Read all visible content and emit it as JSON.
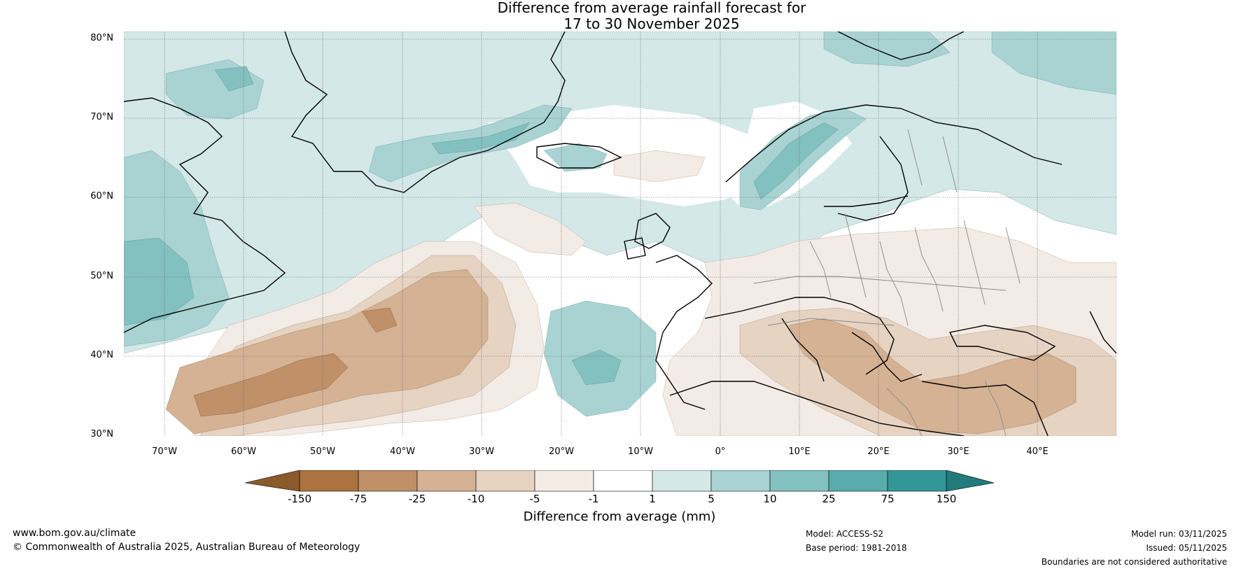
{
  "title": {
    "line1": "Difference from average rainfall forecast for",
    "line2": "17 to 30 November 2025"
  },
  "map": {
    "lat_labels": [
      "80°N",
      "70°N",
      "60°N",
      "50°N",
      "40°N",
      "30°N"
    ],
    "lon_labels": [
      "70°W",
      "60°W",
      "50°W",
      "40°W",
      "30°W",
      "20°W",
      "10°W",
      "0°",
      "10°E",
      "20°E",
      "30°E",
      "40°E"
    ]
  },
  "colorbar": {
    "title": "Difference from average (mm)",
    "ticks": [
      "-150",
      "-75",
      "-25",
      "-10",
      "-5",
      "-1",
      "1",
      "5",
      "10",
      "25",
      "75",
      "150"
    ],
    "colors": {
      "lt_-150": "#8b5a2b",
      "-150_-75": "#ab733f",
      "-75_-25": "#c09068",
      "-25_-10": "#d5b294",
      "-10_-5": "#e6d3c2",
      "-5_-1": "#f3ebe5",
      "-1_1": "#ffffff",
      "1_5": "#d4e8e8",
      "5_10": "#a9d3d3",
      "10_25": "#83c0c0",
      "25_75": "#5aabab",
      "75_150": "#349797",
      "gt_150": "#227a7a"
    }
  },
  "footer": {
    "url": "www.bom.gov.au/climate",
    "copyright": "© Commonwealth of Australia 2025, Australian Bureau of Meteorology",
    "model": "Model: ACCESS-S2",
    "base_period": "Base period: 1981-2018",
    "model_run": "Model run: 03/11/2025",
    "issued": "Issued: 05/11/2025",
    "disclaimer": "Boundaries are not considered authoritative"
  }
}
